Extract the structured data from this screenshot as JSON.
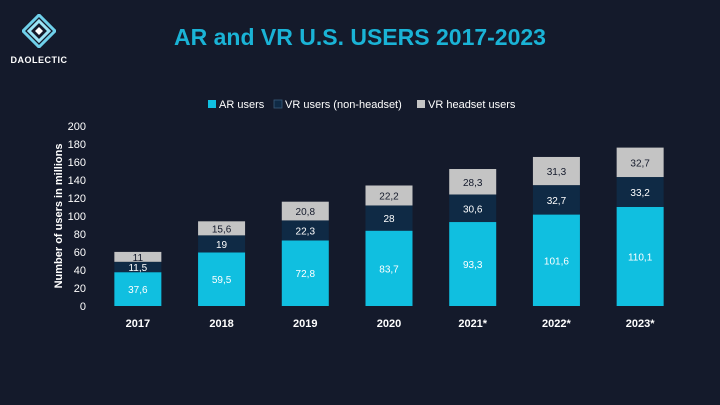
{
  "header": {
    "brand": "DAOLECTIC"
  },
  "colors": {
    "background": "#141a2b",
    "title": "#1ab3d6",
    "ar": "#10bfe0",
    "vr_non_headset": "#0f2a45",
    "vr_headset": "#c4c4c4"
  },
  "chart_data": {
    "type": "bar",
    "stacked": true,
    "title": "AR and VR U.S. USERS 2017-2023",
    "xlabel": "",
    "ylabel": "Number of users in millions",
    "ylim": [
      0,
      200
    ],
    "yticks": [
      0,
      20,
      40,
      60,
      80,
      100,
      120,
      140,
      160,
      180,
      200
    ],
    "grid": false,
    "legend_position": "top",
    "categories": [
      "2017",
      "2018",
      "2019",
      "2020",
      "2021*",
      "2022*",
      "2023*"
    ],
    "series": [
      {
        "name": "AR users",
        "values": [
          37.6,
          59.5,
          72.8,
          83.7,
          93.3,
          101.6,
          110.1
        ],
        "labels": [
          "37,6",
          "59,5",
          "72,8",
          "83,7",
          "93,3",
          "101,6",
          "110,1"
        ]
      },
      {
        "name": "VR users (non-headset)",
        "values": [
          11.5,
          19,
          22.3,
          28,
          30.6,
          32.7,
          33.2
        ],
        "labels": [
          "11,5",
          "19",
          "22,3",
          "28",
          "30,6",
          "32,7",
          "33,2"
        ]
      },
      {
        "name": "VR headset users",
        "values": [
          11,
          15.6,
          20.8,
          22.2,
          28.3,
          31.3,
          32.7
        ],
        "labels": [
          "11",
          "15,6",
          "20,8",
          "22,2",
          "28,3",
          "31,3",
          "32,7"
        ]
      }
    ]
  }
}
